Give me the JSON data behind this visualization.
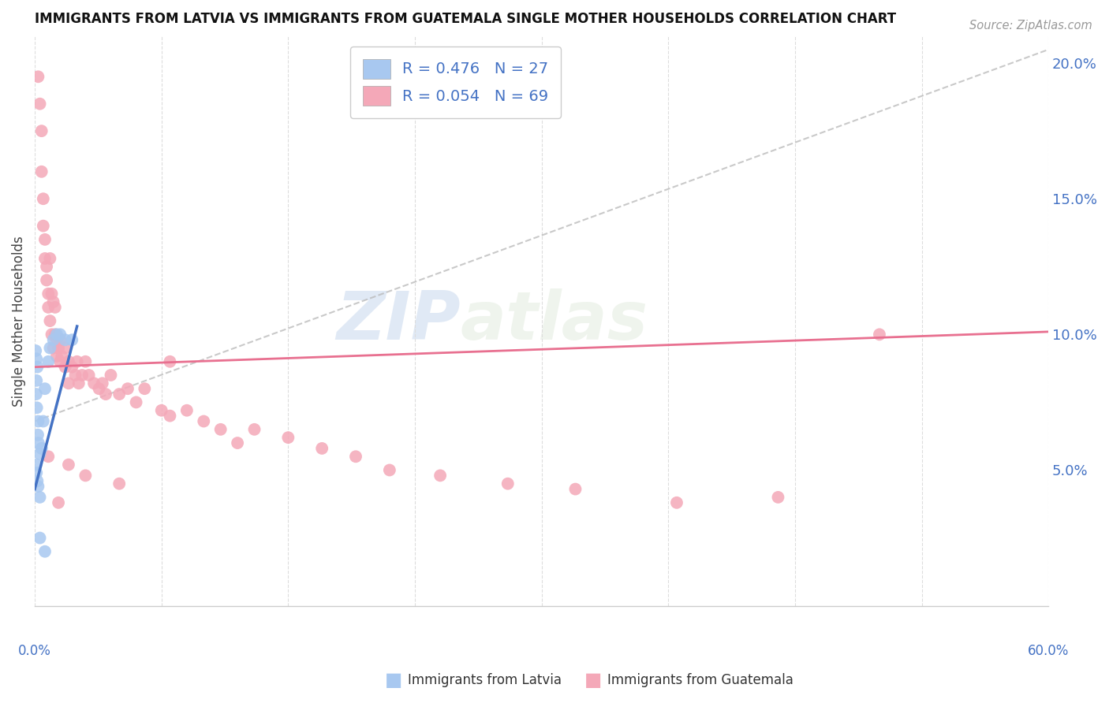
{
  "title": "IMMIGRANTS FROM LATVIA VS IMMIGRANTS FROM GUATEMALA SINGLE MOTHER HOUSEHOLDS CORRELATION CHART",
  "source": "Source: ZipAtlas.com",
  "ylabel": "Single Mother Households",
  "color_latvia": "#a8c8f0",
  "color_guatemala": "#f4a8b8",
  "color_latvia_line": "#4472c4",
  "color_guatemala_line": "#e87090",
  "color_diagonal": "#b8b8b8",
  "color_axis_blue": "#4472c4",
  "watermark_zip": "ZIP",
  "watermark_atlas": "atlas",
  "background_color": "#ffffff",
  "xlim": [
    0.0,
    0.6
  ],
  "ylim": [
    0.0,
    0.21
  ],
  "latvia_scatter_x": [
    0.0005,
    0.001,
    0.0015,
    0.001,
    0.0008,
    0.0012,
    0.002,
    0.0018,
    0.0022,
    0.003,
    0.0008,
    0.001,
    0.0015,
    0.002,
    0.003,
    0.004,
    0.005,
    0.006,
    0.008,
    0.009,
    0.011,
    0.013,
    0.015,
    0.018,
    0.022,
    0.003,
    0.006
  ],
  "latvia_scatter_y": [
    0.094,
    0.091,
    0.088,
    0.083,
    0.078,
    0.073,
    0.068,
    0.063,
    0.06,
    0.056,
    0.052,
    0.049,
    0.046,
    0.044,
    0.04,
    0.058,
    0.068,
    0.08,
    0.09,
    0.095,
    0.098,
    0.1,
    0.1,
    0.098,
    0.098,
    0.025,
    0.02
  ],
  "guatemala_scatter_x": [
    0.002,
    0.003,
    0.004,
    0.004,
    0.005,
    0.005,
    0.006,
    0.006,
    0.007,
    0.007,
    0.008,
    0.008,
    0.009,
    0.009,
    0.01,
    0.01,
    0.011,
    0.011,
    0.012,
    0.012,
    0.013,
    0.013,
    0.014,
    0.015,
    0.015,
    0.016,
    0.018,
    0.018,
    0.02,
    0.02,
    0.022,
    0.024,
    0.025,
    0.026,
    0.028,
    0.03,
    0.032,
    0.035,
    0.038,
    0.04,
    0.042,
    0.045,
    0.05,
    0.055,
    0.06,
    0.065,
    0.075,
    0.08,
    0.09,
    0.1,
    0.11,
    0.12,
    0.13,
    0.15,
    0.17,
    0.19,
    0.21,
    0.24,
    0.28,
    0.32,
    0.38,
    0.44,
    0.5,
    0.008,
    0.014,
    0.02,
    0.03,
    0.05,
    0.08
  ],
  "guatemala_scatter_y": [
    0.195,
    0.185,
    0.175,
    0.16,
    0.15,
    0.14,
    0.135,
    0.128,
    0.125,
    0.12,
    0.115,
    0.11,
    0.128,
    0.105,
    0.1,
    0.115,
    0.112,
    0.095,
    0.11,
    0.1,
    0.098,
    0.092,
    0.095,
    0.09,
    0.098,
    0.092,
    0.095,
    0.088,
    0.09,
    0.082,
    0.088,
    0.085,
    0.09,
    0.082,
    0.085,
    0.09,
    0.085,
    0.082,
    0.08,
    0.082,
    0.078,
    0.085,
    0.078,
    0.08,
    0.075,
    0.08,
    0.072,
    0.07,
    0.072,
    0.068,
    0.065,
    0.06,
    0.065,
    0.062,
    0.058,
    0.055,
    0.05,
    0.048,
    0.045,
    0.043,
    0.038,
    0.04,
    0.1,
    0.055,
    0.038,
    0.052,
    0.048,
    0.045,
    0.09
  ],
  "latvia_line_x": [
    0.0,
    0.025
  ],
  "latvia_line_y": [
    0.043,
    0.103
  ],
  "guatemala_line_x": [
    0.0,
    0.6
  ],
  "guatemala_line_y": [
    0.088,
    0.101
  ],
  "diag_line_x": [
    0.0,
    0.6
  ],
  "diag_line_y": [
    0.068,
    0.205
  ]
}
